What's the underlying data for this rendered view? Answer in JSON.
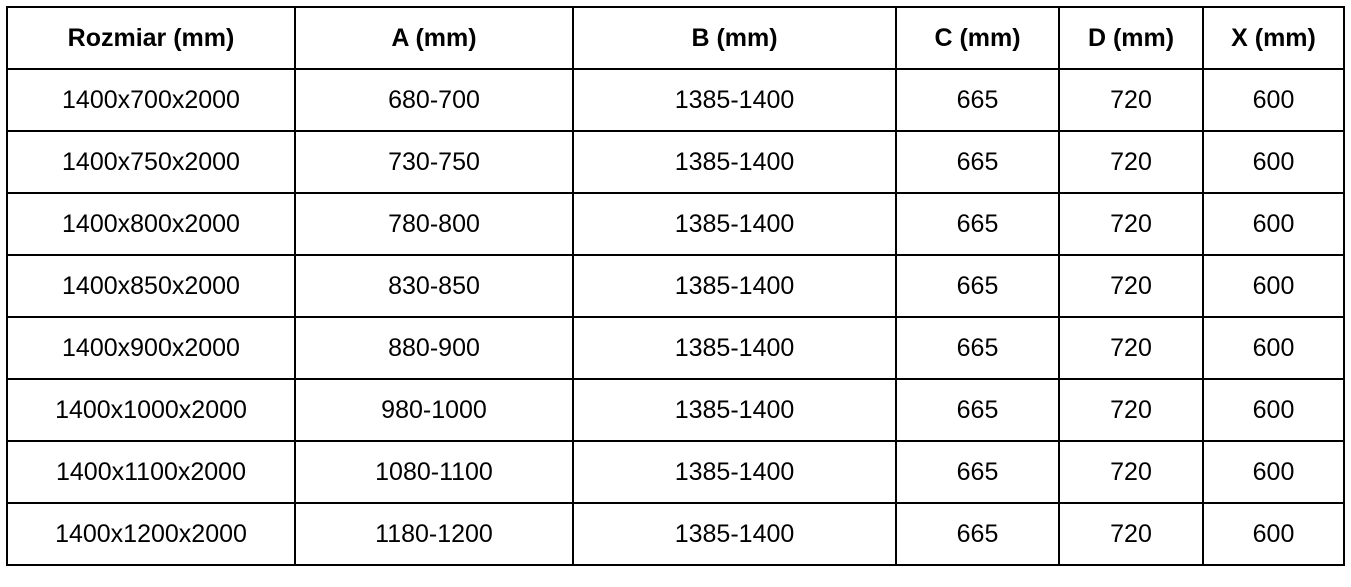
{
  "table": {
    "headers": [
      "Rozmiar (mm)",
      "A (mm)",
      "B (mm)",
      "C (mm)",
      "D (mm)",
      "X (mm)"
    ],
    "rows": [
      [
        "1400x700x2000",
        "680-700",
        "1385-1400",
        "665",
        "720",
        "600"
      ],
      [
        "1400x750x2000",
        "730-750",
        "1385-1400",
        "665",
        "720",
        "600"
      ],
      [
        "1400x800x2000",
        "780-800",
        "1385-1400",
        "665",
        "720",
        "600"
      ],
      [
        "1400x850x2000",
        "830-850",
        "1385-1400",
        "665",
        "720",
        "600"
      ],
      [
        "1400x900x2000",
        "880-900",
        "1385-1400",
        "665",
        "720",
        "600"
      ],
      [
        "1400x1000x2000",
        "980-1000",
        "1385-1400",
        "665",
        "720",
        "600"
      ],
      [
        "1400x1100x2000",
        "1080-1100",
        "1385-1400",
        "665",
        "720",
        "600"
      ],
      [
        "1400x1200x2000",
        "1180-1200",
        "1385-1400",
        "665",
        "720",
        "600"
      ]
    ]
  }
}
